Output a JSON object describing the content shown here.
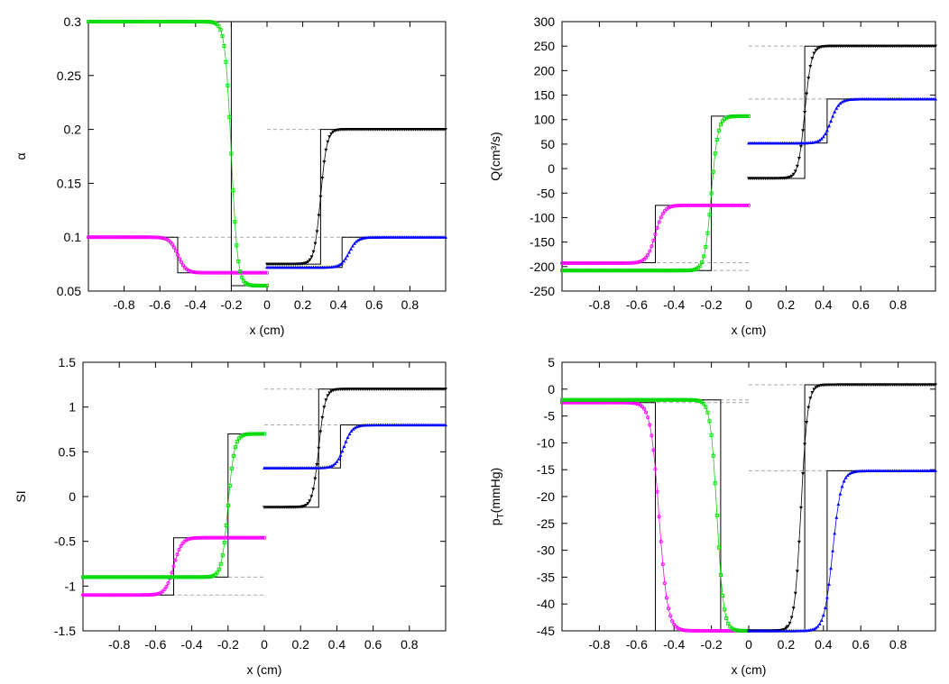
{
  "chart_data": [
    {
      "type": "line",
      "id": "alpha",
      "xlabel": "x (cm)",
      "ylabel": "α",
      "xlim": [
        -1,
        1
      ],
      "ylim": [
        0.05,
        0.3
      ],
      "xticks": [
        -0.8,
        -0.6,
        -0.4,
        -0.2,
        0,
        0.2,
        0.4,
        0.6,
        0.8
      ],
      "yticks": [
        0.05,
        0.1,
        0.15,
        0.2,
        0.25,
        0.3
      ],
      "ytick_labels": [
        "0.05",
        "0.1",
        "0.15",
        "0.2",
        "0.25",
        "0.3"
      ],
      "reference_lines": [
        {
          "name": "magenta-exact",
          "x": [
            -1,
            -0.6,
            -0.5,
            -0.5,
            0
          ],
          "y": [
            0.1,
            0.1,
            0.1,
            0.067,
            0.067
          ]
        },
        {
          "name": "green-exact",
          "x": [
            -1,
            -0.2,
            -0.2,
            0
          ],
          "y": [
            0.3,
            0.3,
            0.055,
            0.055
          ]
        },
        {
          "name": "black-exact",
          "x": [
            0,
            0.25,
            0.3,
            0.3,
            1
          ],
          "y": [
            0.075,
            0.075,
            0.075,
            0.2,
            0.2
          ]
        },
        {
          "name": "blue-exact",
          "x": [
            0,
            0.4,
            0.42,
            0.42,
            1
          ],
          "y": [
            0.072,
            0.072,
            0.072,
            0.1,
            0.1
          ]
        }
      ],
      "dashed_lines": [
        {
          "x": [
            -1,
            0
          ],
          "y": 0.1
        },
        {
          "x": [
            0,
            1
          ],
          "y": 0.2
        },
        {
          "x": [
            0,
            1
          ],
          "y": 0.1
        }
      ],
      "series": [
        {
          "name": "magenta",
          "color": "#ff00ff",
          "marker": "circle",
          "domain": [
            -1,
            0
          ],
          "left": 0.1,
          "right": 0.067,
          "center": -0.5,
          "width": 0.045
        },
        {
          "name": "green",
          "color": "#00dd00",
          "marker": "square",
          "domain": [
            -1,
            0
          ],
          "left": 0.3,
          "right": 0.055,
          "center": -0.2,
          "width": 0.035
        },
        {
          "name": "black",
          "color": "#000000",
          "marker": "triangle-down",
          "domain": [
            0,
            1
          ],
          "left": 0.075,
          "right": 0.2,
          "center": 0.3,
          "width": 0.035
        },
        {
          "name": "blue",
          "color": "#0000ff",
          "marker": "triangle-up",
          "domain": [
            0,
            1
          ],
          "left": 0.072,
          "right": 0.1,
          "center": 0.46,
          "width": 0.045
        }
      ]
    },
    {
      "type": "line",
      "id": "flow",
      "xlabel": "x (cm)",
      "ylabel": "Q(cm³/s)",
      "xlim": [
        -1,
        1
      ],
      "ylim": [
        -250,
        300
      ],
      "xticks": [
        -0.8,
        -0.6,
        -0.4,
        -0.2,
        0,
        0.2,
        0.4,
        0.6,
        0.8
      ],
      "yticks": [
        -250,
        -200,
        -150,
        -100,
        -50,
        0,
        50,
        100,
        150,
        200,
        250,
        300
      ],
      "ytick_labels": [
        "-250",
        "-200",
        "-150",
        "-100",
        "-50",
        "0",
        "50",
        "100",
        "150",
        "200",
        "250",
        "300"
      ],
      "reference_lines": [
        {
          "name": "magenta-exact",
          "x": [
            -1,
            -0.5,
            -0.5,
            0
          ],
          "y": [
            -192,
            -192,
            -75,
            -75
          ]
        },
        {
          "name": "green-exact",
          "x": [
            -1,
            -0.25,
            -0.2,
            -0.2,
            0
          ],
          "y": [
            -208,
            -208,
            -208,
            107,
            107
          ]
        },
        {
          "name": "black-exact",
          "x": [
            0,
            0.28,
            0.3,
            0.3,
            1
          ],
          "y": [
            -20,
            -20,
            -20,
            250,
            250
          ]
        },
        {
          "name": "blue-exact",
          "x": [
            0,
            0.38,
            0.42,
            0.42,
            1
          ],
          "y": [
            52,
            52,
            52,
            142,
            142
          ]
        }
      ],
      "dashed_lines": [
        {
          "x": [
            -1,
            0
          ],
          "y": -192
        },
        {
          "x": [
            -1,
            0
          ],
          "y": -208
        },
        {
          "x": [
            0,
            1
          ],
          "y": 250
        },
        {
          "x": [
            0,
            1
          ],
          "y": 142
        }
      ],
      "series": [
        {
          "name": "magenta",
          "color": "#ff00ff",
          "marker": "circle",
          "domain": [
            -1,
            0
          ],
          "left": -193,
          "right": -75,
          "center": -0.5,
          "width": 0.045
        },
        {
          "name": "green",
          "color": "#00dd00",
          "marker": "square",
          "domain": [
            -1,
            0
          ],
          "left": -208,
          "right": 107,
          "center": -0.2,
          "width": 0.035
        },
        {
          "name": "black",
          "color": "#000000",
          "marker": "triangle-down",
          "domain": [
            0,
            1
          ],
          "left": -20,
          "right": 250,
          "center": 0.3,
          "width": 0.035
        },
        {
          "name": "blue",
          "color": "#0000ff",
          "marker": "triangle-up",
          "domain": [
            0,
            1
          ],
          "left": 52,
          "right": 142,
          "center": 0.44,
          "width": 0.045
        }
      ]
    },
    {
      "type": "line",
      "id": "si",
      "xlabel": "x (cm)",
      "ylabel": "SI",
      "xlim": [
        -1,
        1
      ],
      "ylim": [
        -1.5,
        1.5
      ],
      "xticks": [
        -0.8,
        -0.6,
        -0.4,
        -0.2,
        0,
        0.2,
        0.4,
        0.6,
        0.8
      ],
      "yticks": [
        -1.5,
        -1,
        -0.5,
        0,
        0.5,
        1,
        1.5
      ],
      "ytick_labels": [
        "-1.5",
        "-1",
        "-0.5",
        "0",
        "0.5",
        "1",
        "1.5"
      ],
      "reference_lines": [
        {
          "name": "magenta-exact",
          "x": [
            -1,
            -0.5,
            -0.5,
            0
          ],
          "y": [
            -1.1,
            -1.1,
            -0.46,
            -0.46
          ]
        },
        {
          "name": "green-exact",
          "x": [
            -1,
            -0.25,
            -0.2,
            -0.2,
            0
          ],
          "y": [
            -0.9,
            -0.9,
            -0.9,
            0.7,
            0.7
          ]
        },
        {
          "name": "black-exact",
          "x": [
            0,
            0.25,
            0.3,
            0.3,
            1
          ],
          "y": [
            -0.12,
            -0.12,
            -0.12,
            1.2,
            1.2
          ]
        },
        {
          "name": "blue-exact",
          "x": [
            0,
            0.38,
            0.42,
            0.42,
            1
          ],
          "y": [
            0.32,
            0.32,
            0.32,
            0.8,
            0.8
          ]
        }
      ],
      "dashed_lines": [
        {
          "x": [
            -1,
            0
          ],
          "y": -0.9
        },
        {
          "x": [
            -1,
            0
          ],
          "y": -1.1
        },
        {
          "x": [
            0,
            1
          ],
          "y": 1.2
        },
        {
          "x": [
            0,
            1
          ],
          "y": 0.8
        }
      ],
      "series": [
        {
          "name": "magenta",
          "color": "#ff00ff",
          "marker": "circle",
          "domain": [
            -1,
            0
          ],
          "left": -1.1,
          "right": -0.46,
          "center": -0.5,
          "width": 0.045
        },
        {
          "name": "green",
          "color": "#00dd00",
          "marker": "square",
          "domain": [
            -1,
            0
          ],
          "left": -0.9,
          "right": 0.7,
          "center": -0.2,
          "width": 0.035
        },
        {
          "name": "black",
          "color": "#000000",
          "marker": "triangle-down",
          "domain": [
            0,
            1
          ],
          "left": -0.12,
          "right": 1.2,
          "center": 0.3,
          "width": 0.035
        },
        {
          "name": "blue",
          "color": "#0000ff",
          "marker": "triangle-up",
          "domain": [
            0,
            1
          ],
          "left": 0.32,
          "right": 0.8,
          "center": 0.44,
          "width": 0.045
        }
      ]
    },
    {
      "type": "line",
      "id": "pressure",
      "xlabel": "x (cm)",
      "ylabel": "pT(mmHg)",
      "ylabel_base": "p",
      "ylabel_sub": "T",
      "ylabel_rest": "(mmHg)",
      "xlim": [
        -1,
        1
      ],
      "ylim": [
        -45,
        5
      ],
      "xticks": [
        -0.8,
        -0.6,
        -0.4,
        -0.2,
        0,
        0.2,
        0.4,
        0.6,
        0.8
      ],
      "yticks": [
        -45,
        -40,
        -35,
        -30,
        -25,
        -20,
        -15,
        -10,
        -5,
        0,
        5
      ],
      "ytick_labels": [
        "-45",
        "-40",
        "-35",
        "-30",
        "-25",
        "-20",
        "-15",
        "-10",
        "-5",
        "0",
        "5"
      ],
      "reference_lines": [
        {
          "name": "magenta-exact",
          "x": [
            -1,
            -0.5,
            -0.5,
            0
          ],
          "y": [
            -2.5,
            -2.5,
            -45,
            -45
          ]
        },
        {
          "name": "green-exact",
          "x": [
            -1,
            -0.2,
            -0.15,
            -0.15,
            0
          ],
          "y": [
            -2,
            -2,
            -2,
            -45,
            -45
          ]
        },
        {
          "name": "black-exact",
          "x": [
            0,
            0.25,
            0.3,
            0.3,
            1
          ],
          "y": [
            -45,
            -45,
            -45,
            0.8,
            0.8
          ]
        },
        {
          "name": "blue-exact",
          "x": [
            0,
            0.38,
            0.42,
            0.42,
            1
          ],
          "y": [
            -45,
            -45,
            -45,
            -15.2,
            -15.2
          ]
        }
      ],
      "dashed_lines": [
        {
          "x": [
            -1,
            0
          ],
          "y": -2
        },
        {
          "x": [
            -1,
            0
          ],
          "y": -2.5
        },
        {
          "x": [
            0,
            1
          ],
          "y": 0.8
        },
        {
          "x": [
            0,
            1
          ],
          "y": -15.2
        }
      ],
      "series": [
        {
          "name": "magenta",
          "color": "#ff00ff",
          "marker": "circle",
          "domain": [
            -1,
            0
          ],
          "left": -2.5,
          "right": -45,
          "center": -0.48,
          "width": 0.045
        },
        {
          "name": "green",
          "color": "#00dd00",
          "marker": "square",
          "domain": [
            -1,
            0
          ],
          "left": -2,
          "right": -45,
          "center": -0.17,
          "width": 0.035
        },
        {
          "name": "black",
          "color": "#000000",
          "marker": "triangle-down",
          "domain": [
            0,
            1
          ],
          "left": -45,
          "right": 0.8,
          "center": 0.28,
          "width": 0.035
        },
        {
          "name": "blue",
          "color": "#0000ff",
          "marker": "triangle-up",
          "domain": [
            0,
            1
          ],
          "left": -45,
          "right": -15.2,
          "center": 0.45,
          "width": 0.045
        }
      ]
    }
  ]
}
